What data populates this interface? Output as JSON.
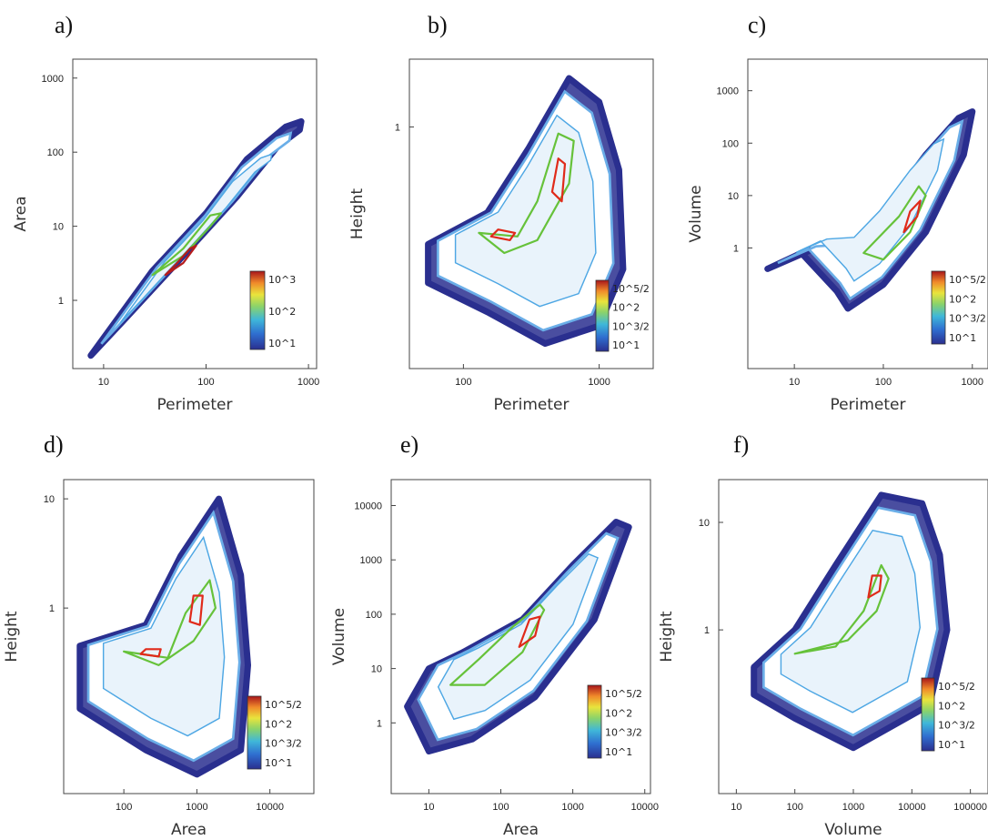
{
  "chart_data": [
    {
      "panel": "a)",
      "type": "heatmap",
      "xlabel": "Perimeter",
      "ylabel": "Area",
      "x_scale": "log",
      "y_scale": "log",
      "xlim": [
        5,
        1200
      ],
      "ylim": [
        0.12,
        1800
      ],
      "x_ticks": [
        10,
        100,
        1000
      ],
      "x_tick_labels": [
        "10",
        "100",
        "1000"
      ],
      "y_ticks": [
        1,
        10,
        100,
        1000
      ],
      "y_tick_labels": [
        "1",
        "10",
        "100",
        "1000"
      ],
      "colorbar": [
        "10^3",
        "10^2",
        "10^1"
      ],
      "density_path": [
        [
          7.5,
          0.18
        ],
        [
          30,
          2.5
        ],
        [
          100,
          15
        ],
        [
          250,
          80
        ],
        [
          600,
          220
        ],
        [
          850,
          260
        ],
        [
          820,
          200
        ],
        [
          500,
          120
        ],
        [
          200,
          25
        ],
        [
          60,
          4
        ],
        [
          15,
          0.5
        ],
        [
          7.5,
          0.18
        ]
      ],
      "contours": [
        {
          "level": "10^2",
          "points": [
            [
              30,
              2.2
            ],
            [
              60,
              5
            ],
            [
              110,
              14
            ],
            [
              140,
              15
            ],
            [
              110,
              10
            ],
            [
              60,
              4
            ],
            [
              30,
              2.2
            ]
          ]
        },
        {
          "level": "10^3",
          "points": [
            [
              40,
              2.2
            ],
            [
              60,
              3.2
            ],
            [
              80,
              5.5
            ],
            [
              70,
              5
            ],
            [
              50,
              3
            ],
            [
              40,
              2.2
            ]
          ]
        }
      ]
    },
    {
      "panel": "b)",
      "type": "heatmap",
      "xlabel": "Perimeter",
      "ylabel": "Height",
      "x_scale": "log",
      "y_scale": "log",
      "xlim": [
        40,
        2500
      ],
      "ylim": [
        0.02,
        3
      ],
      "x_ticks": [
        100,
        1000
      ],
      "x_tick_labels": [
        "100",
        "1000"
      ],
      "y_ticks": [
        1
      ],
      "y_tick_labels": [
        "1"
      ],
      "colorbar": [
        "10^5/2",
        "10^2",
        "10^3/2",
        "10^1"
      ],
      "density_path": [
        [
          55,
          0.08
        ],
        [
          150,
          0.05
        ],
        [
          400,
          0.03
        ],
        [
          1000,
          0.04
        ],
        [
          1500,
          0.1
        ],
        [
          1400,
          0.5
        ],
        [
          1000,
          1.5
        ],
        [
          600,
          2.2
        ],
        [
          300,
          0.7
        ],
        [
          150,
          0.25
        ],
        [
          55,
          0.15
        ],
        [
          55,
          0.08
        ]
      ],
      "contours": [
        {
          "level": "10^2",
          "points": [
            [
              130,
              0.18
            ],
            [
              250,
              0.17
            ],
            [
              350,
              0.3
            ],
            [
              500,
              0.9
            ],
            [
              650,
              0.8
            ],
            [
              600,
              0.4
            ],
            [
              350,
              0.16
            ],
            [
              200,
              0.13
            ],
            [
              130,
              0.18
            ]
          ]
        },
        {
          "level": "10^5/2",
          "points": [
            [
              160,
              0.17
            ],
            [
              220,
              0.16
            ],
            [
              240,
              0.18
            ],
            [
              180,
              0.19
            ],
            [
              160,
              0.17
            ]
          ]
        },
        {
          "level": "10^5/2",
          "points": [
            [
              450,
              0.35
            ],
            [
              530,
              0.3
            ],
            [
              560,
              0.55
            ],
            [
              500,
              0.6
            ],
            [
              450,
              0.35
            ]
          ]
        }
      ]
    },
    {
      "panel": "c)",
      "type": "heatmap",
      "xlabel": "Perimeter",
      "ylabel": "Volume",
      "x_scale": "log",
      "y_scale": "log",
      "xlim": [
        3,
        1500
      ],
      "ylim": [
        0.005,
        4000
      ],
      "x_ticks": [
        10,
        100,
        1000
      ],
      "x_tick_labels": [
        "10",
        "100",
        "1000"
      ],
      "y_ticks": [
        1,
        10,
        100,
        1000
      ],
      "y_tick_labels": [
        "1",
        "10",
        "100",
        "1000"
      ],
      "colorbar": [
        "10^5/2",
        "10^2",
        "10^3/2",
        "10^1"
      ],
      "density_path": [
        [
          5,
          0.4
        ],
        [
          12,
          0.8
        ],
        [
          30,
          0.15
        ],
        [
          40,
          0.07
        ],
        [
          100,
          0.2
        ],
        [
          300,
          2
        ],
        [
          800,
          60
        ],
        [
          1000,
          400
        ],
        [
          700,
          300
        ],
        [
          300,
          60
        ],
        [
          100,
          5
        ],
        [
          40,
          1
        ],
        [
          15,
          0.9
        ],
        [
          5,
          0.4
        ]
      ],
      "contours": [
        {
          "level": "10^2",
          "points": [
            [
              60,
              0.8
            ],
            [
              100,
              0.6
            ],
            [
              200,
              2
            ],
            [
              300,
              10
            ],
            [
              250,
              15
            ],
            [
              150,
              4
            ],
            [
              60,
              0.8
            ]
          ]
        },
        {
          "level": "10^5/2",
          "points": [
            [
              170,
              2
            ],
            [
              240,
              4
            ],
            [
              260,
              8
            ],
            [
              200,
              5
            ],
            [
              170,
              2
            ]
          ]
        }
      ]
    },
    {
      "panel": "d)",
      "type": "heatmap",
      "xlabel": "Area",
      "ylabel": "Height",
      "x_scale": "log",
      "y_scale": "log",
      "xlim": [
        15,
        40000
      ],
      "ylim": [
        0.02,
        15
      ],
      "x_ticks": [
        100,
        1000,
        10000
      ],
      "x_tick_labels": [
        "100",
        "1000",
        "10000"
      ],
      "y_ticks": [
        1,
        10
      ],
      "y_tick_labels": [
        "1",
        "10"
      ],
      "colorbar": [
        "10^5/2",
        "10^2",
        "10^3/2",
        "10^1"
      ],
      "density_path": [
        [
          25,
          0.12
        ],
        [
          200,
          0.05
        ],
        [
          1000,
          0.03
        ],
        [
          4000,
          0.05
        ],
        [
          5000,
          0.3
        ],
        [
          4000,
          2
        ],
        [
          2000,
          10
        ],
        [
          600,
          3
        ],
        [
          200,
          0.7
        ],
        [
          25,
          0.45
        ],
        [
          25,
          0.12
        ]
      ],
      "contours": [
        {
          "level": "10^2",
          "points": [
            [
              100,
              0.4
            ],
            [
              400,
              0.35
            ],
            [
              700,
              0.9
            ],
            [
              1500,
              1.8
            ],
            [
              1800,
              1
            ],
            [
              900,
              0.5
            ],
            [
              300,
              0.3
            ],
            [
              100,
              0.4
            ]
          ]
        },
        {
          "level": "10^5/2",
          "points": [
            [
              170,
              0.38
            ],
            [
              300,
              0.36
            ],
            [
              320,
              0.42
            ],
            [
              200,
              0.42
            ],
            [
              170,
              0.38
            ]
          ]
        },
        {
          "level": "10^5/2",
          "points": [
            [
              800,
              0.75
            ],
            [
              1100,
              0.7
            ],
            [
              1200,
              1.3
            ],
            [
              900,
              1.3
            ],
            [
              800,
              0.75
            ]
          ]
        }
      ]
    },
    {
      "panel": "e)",
      "type": "heatmap",
      "xlabel": "Area",
      "ylabel": "Volume",
      "x_scale": "log",
      "y_scale": "log",
      "xlim": [
        3,
        12000
      ],
      "ylim": [
        0.05,
        30000
      ],
      "x_ticks": [
        10,
        100,
        1000,
        10000
      ],
      "x_tick_labels": [
        "10",
        "100",
        "1000",
        "10000"
      ],
      "y_ticks": [
        1,
        10,
        100,
        1000,
        10000
      ],
      "y_tick_labels": [
        "1",
        "10",
        "100",
        "1000",
        "10000"
      ],
      "colorbar": [
        "10^5/2",
        "10^2",
        "10^3/2",
        "10^1"
      ],
      "density_path": [
        [
          5,
          2
        ],
        [
          10,
          0.3
        ],
        [
          40,
          0.5
        ],
        [
          300,
          3
        ],
        [
          2000,
          80
        ],
        [
          6000,
          4000
        ],
        [
          4000,
          5000
        ],
        [
          1000,
          800
        ],
        [
          200,
          80
        ],
        [
          30,
          20
        ],
        [
          10,
          10
        ],
        [
          5,
          2
        ]
      ],
      "contours": [
        {
          "level": "10^2",
          "points": [
            [
              20,
              5
            ],
            [
              60,
              5
            ],
            [
              200,
              20
            ],
            [
              400,
              120
            ],
            [
              350,
              150
            ],
            [
              150,
              60
            ],
            [
              50,
              15
            ],
            [
              20,
              5
            ]
          ]
        },
        {
          "level": "10^5/2",
          "points": [
            [
              180,
              25
            ],
            [
              300,
              40
            ],
            [
              350,
              90
            ],
            [
              250,
              80
            ],
            [
              180,
              25
            ]
          ]
        }
      ]
    },
    {
      "panel": "f)",
      "type": "heatmap",
      "xlabel": "Volume",
      "ylabel": "Height",
      "x_scale": "log",
      "y_scale": "log",
      "xlim": [
        5,
        200000
      ],
      "ylim": [
        0.03,
        25
      ],
      "x_ticks": [
        10,
        100,
        1000,
        10000,
        100000
      ],
      "x_tick_labels": [
        "10",
        "100",
        "1000",
        "10000",
        "100000"
      ],
      "y_ticks": [
        1,
        10
      ],
      "y_tick_labels": [
        "1",
        "10"
      ],
      "colorbar": [
        "10^5/2",
        "10^2",
        "10^3/2",
        "10^1"
      ],
      "density_path": [
        [
          20,
          0.25
        ],
        [
          100,
          0.15
        ],
        [
          1000,
          0.08
        ],
        [
          20000,
          0.2
        ],
        [
          40000,
          1
        ],
        [
          30000,
          5
        ],
        [
          15000,
          15
        ],
        [
          3000,
          18
        ],
        [
          500,
          4
        ],
        [
          100,
          1
        ],
        [
          20,
          0.45
        ],
        [
          20,
          0.25
        ]
      ],
      "contours": [
        {
          "level": "10^2",
          "points": [
            [
              100,
              0.6
            ],
            [
              500,
              0.7
            ],
            [
              1500,
              1.5
            ],
            [
              3000,
              4
            ],
            [
              4000,
              3
            ],
            [
              2500,
              1.5
            ],
            [
              800,
              0.8
            ],
            [
              100,
              0.6
            ]
          ]
        },
        {
          "level": "10^5/2",
          "points": [
            [
              1800,
              2
            ],
            [
              2800,
              2.3
            ],
            [
              3000,
              3.2
            ],
            [
              2100,
              3.2
            ],
            [
              1800,
              2
            ]
          ]
        }
      ]
    }
  ]
}
